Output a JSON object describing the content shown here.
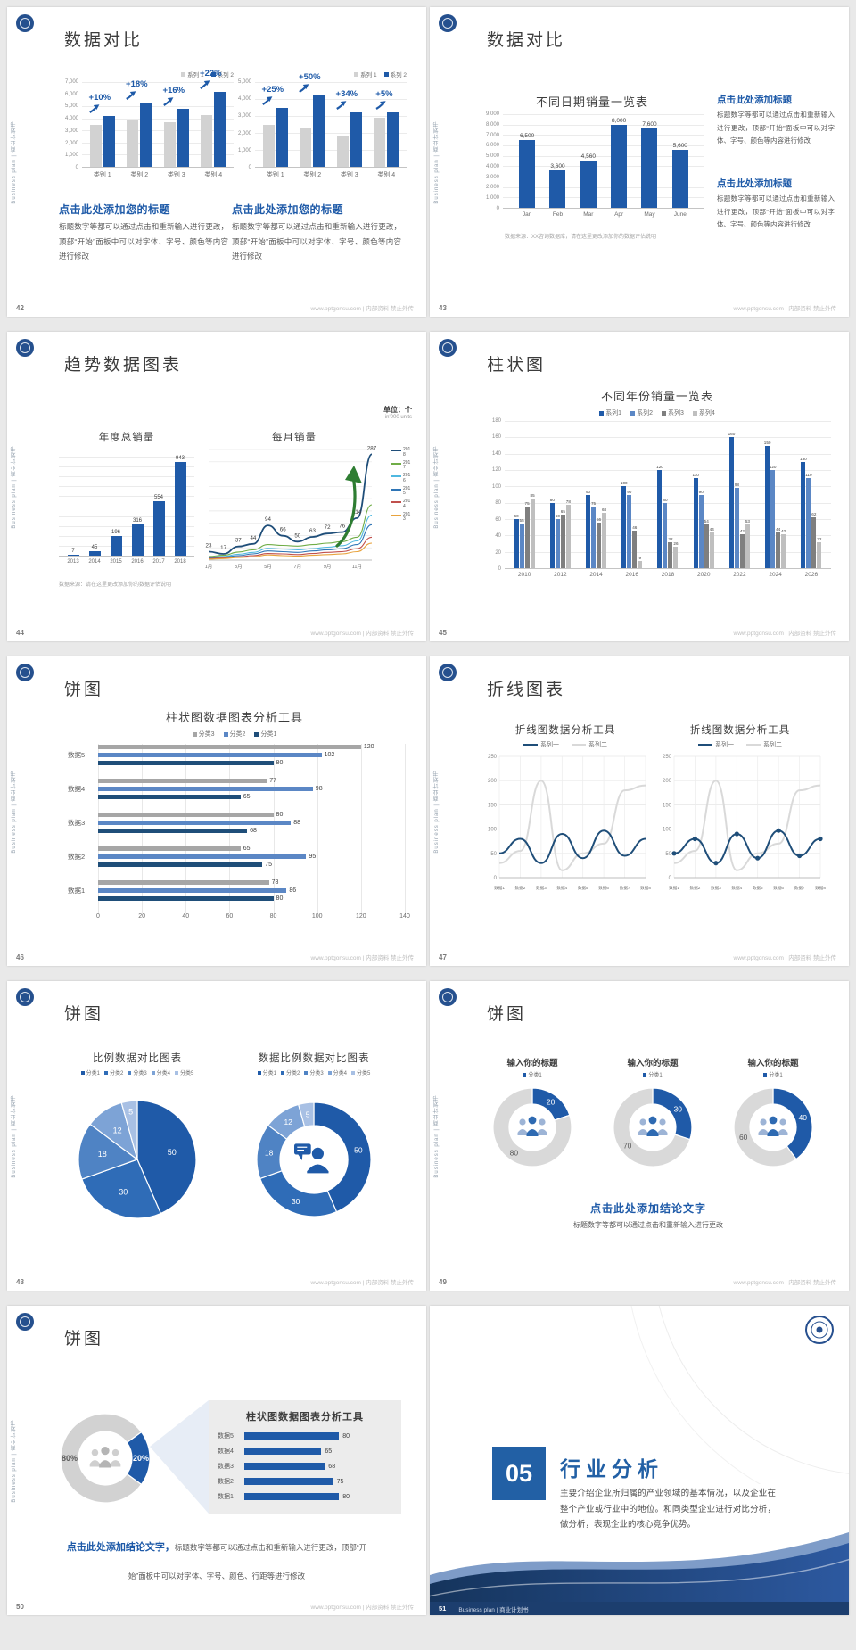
{
  "common": {
    "sidebar_text": "Business plan | 商业计划书",
    "footer_url": "www.pptgonsu.com | 内部资料 禁止外传",
    "colors": {
      "primary": "#1E5AA8",
      "navy": "#1F4E79",
      "mid_blue": "#5B87C5",
      "bar_gray": "#D2D2D2",
      "mid_gray": "#A6A6A6",
      "green_arrow": "#2E7D32",
      "body_text": "#595959"
    }
  },
  "s42": {
    "page_no": "42",
    "title": "数据对比",
    "legend": [
      "系列 1",
      "系列 2"
    ],
    "left_chart": {
      "type": "bar",
      "ymax": 7000,
      "yticks": [
        "7,000",
        "6,000",
        "5,000",
        "4,000",
        "3,000",
        "2,000",
        "1,000",
        "0"
      ],
      "categories": [
        "类别 1",
        "类别 2",
        "类别 3",
        "类别 4"
      ],
      "series": [
        {
          "name": "系列 1",
          "values": [
            3500,
            3800,
            3700,
            4300
          ]
        },
        {
          "name": "系列 2",
          "values": [
            4200,
            5300,
            4800,
            6200
          ]
        }
      ],
      "annotations": [
        "+10%",
        "+18%",
        "+16%",
        "+22%"
      ]
    },
    "right_chart": {
      "type": "bar",
      "ymax": 5000,
      "yticks": [
        "5,000",
        "4,000",
        "3,000",
        "2,000",
        "1,000",
        "0"
      ],
      "categories": [
        "类别 1",
        "类别 2",
        "类别 3",
        "类别 4"
      ],
      "series": [
        {
          "name": "系列 1",
          "values": [
            2500,
            2300,
            1800,
            2900
          ]
        },
        {
          "name": "系列 2",
          "values": [
            3500,
            4200,
            3200,
            3200
          ]
        }
      ],
      "annotations": [
        "+25%",
        "+50%",
        "+34%",
        "+5%"
      ]
    },
    "block_title": "点击此处添加您的标题",
    "block_body": "标题数字等都可以通过点击和重新输入进行更改，顶部“开始”面板中可以对字体、字号、颜色等内容进行修改"
  },
  "s43": {
    "page_no": "43",
    "title": "数据对比",
    "chart": {
      "type": "bar",
      "title": "不同日期销量一览表",
      "ymax": 9000,
      "yticks": [
        "9,000",
        "8,000",
        "7,000",
        "6,000",
        "5,000",
        "4,000",
        "3,000",
        "2,000",
        "1,000",
        "0"
      ],
      "categories": [
        "Jan",
        "Feb",
        "Mar",
        "Apr",
        "May",
        "June"
      ],
      "values": [
        6500,
        3600,
        4560,
        8000,
        7600,
        5600
      ],
      "labels": [
        "6,500",
        "3,600",
        "4,560",
        "8,000",
        "7,600",
        "5,600"
      ]
    },
    "note": "数据来源：XX咨询数据库，请在这里更改添加你的数据评估说明",
    "blocks": [
      {
        "title": "点击此处添加标题",
        "body": "标题数字等都可以通过点击和重新输入进行更改，顶部“开始”面板中可以对字体、字号、颜色等内容进行修改"
      },
      {
        "title": "点击此处添加标题",
        "body": "标题数字等都可以通过点击和重新输入进行更改，顶部“开始”面板中可以对字体、字号、颜色等内容进行修改"
      }
    ]
  },
  "s44": {
    "page_no": "44",
    "title": "趋势数据图表",
    "unit_cn": "单位：个",
    "unit_en": "in'000 units",
    "annual": {
      "type": "bar",
      "title": "年度总销量",
      "ymax": 1000,
      "categories": [
        "2013",
        "2014",
        "2015",
        "2016",
        "2017",
        "2018"
      ],
      "values": [
        7,
        45,
        196,
        316,
        554,
        943
      ]
    },
    "monthly": {
      "type": "line",
      "title": "每月销量",
      "ymax": 300,
      "x_labels": [
        "1月",
        "3月",
        "5月",
        "7月",
        "9月",
        "11月"
      ],
      "series": [
        {
          "name": "2018",
          "color": "#1F4E79",
          "values": [
            23,
            17,
            37,
            44,
            94,
            66,
            50,
            63,
            72,
            76,
            114,
            287
          ],
          "labeled": true
        },
        {
          "name": "2017",
          "color": "#70AD47",
          "values": [
            10,
            13,
            22,
            28,
            42,
            40,
            38,
            42,
            46,
            50,
            62,
            150
          ]
        },
        {
          "name": "2016",
          "color": "#4FB8E0",
          "values": [
            8,
            10,
            16,
            21,
            32,
            30,
            28,
            31,
            35,
            39,
            52,
            122
          ]
        },
        {
          "name": "2015",
          "color": "#2E75B6",
          "values": [
            6,
            8,
            12,
            17,
            25,
            23,
            21,
            25,
            28,
            31,
            42,
            96
          ]
        },
        {
          "name": "2014",
          "color": "#C0504D",
          "values": [
            4,
            6,
            9,
            12,
            18,
            17,
            15,
            18,
            21,
            23,
            31,
            62
          ]
        },
        {
          "name": "2013",
          "color": "#E8A33D",
          "values": [
            3,
            4,
            7,
            9,
            14,
            12,
            11,
            13,
            15,
            17,
            23,
            46
          ]
        }
      ]
    },
    "note": "数据来源：请在这里更改添加你的数据评估说明"
  },
  "s45": {
    "page_no": "45",
    "title": "柱状图",
    "chart": {
      "type": "bar",
      "title": "不同年份销量一览表",
      "ymax": 180,
      "yticks": [
        "180",
        "160",
        "140",
        "120",
        "100",
        "80",
        "60",
        "40",
        "20",
        "0"
      ],
      "categories": [
        "2010",
        "2012",
        "2014",
        "2016",
        "2018",
        "2020",
        "2022",
        "2024",
        "2026"
      ],
      "series": [
        {
          "name": "系列1",
          "color": "#1F5AA8",
          "values": [
            60,
            80,
            90,
            100,
            120,
            110,
            160,
            150,
            130
          ]
        },
        {
          "name": "系列2",
          "color": "#5B87C5",
          "values": [
            55,
            60,
            75,
            90,
            80,
            90,
            98,
            120,
            110
          ]
        },
        {
          "name": "系列3",
          "color": "#7F7F7F",
          "values": [
            75,
            65,
            56,
            46,
            32,
            54,
            42,
            44,
            62
          ]
        },
        {
          "name": "系列4",
          "color": "#BFBFBF",
          "values": [
            85,
            78,
            68,
            9,
            26,
            44,
            53,
            42,
            32
          ]
        }
      ]
    }
  },
  "s46": {
    "page_no": "46",
    "title": "饼图",
    "chart": {
      "type": "hbar",
      "title": "柱状图数据图表分析工具",
      "xmax": 140,
      "xticks": [
        "0",
        "20",
        "40",
        "60",
        "80",
        "100",
        "120",
        "140"
      ],
      "rows": [
        "数据5",
        "数据4",
        "数据3",
        "数据2",
        "数据1"
      ],
      "series": [
        {
          "name": "分类3",
          "color": "#A6A6A6",
          "values": [
            120,
            77,
            80,
            65,
            78
          ]
        },
        {
          "name": "分类2",
          "color": "#5B87C5",
          "values": [
            102,
            98,
            88,
            95,
            86
          ]
        },
        {
          "name": "分类1",
          "color": "#1F4E79",
          "values": [
            80,
            65,
            68,
            75,
            80
          ]
        }
      ]
    }
  },
  "s47": {
    "page_no": "47",
    "title": "折线图表",
    "charts": [
      {
        "title": "折线图数据分析工具",
        "ymax": 250,
        "yticks": [
          "250",
          "200",
          "150",
          "100",
          "50",
          "0"
        ],
        "x": [
          "数据1",
          "数据2",
          "数据3",
          "数据4",
          "数据5",
          "数据6",
          "数据7",
          "数据8"
        ],
        "series": [
          {
            "name": "系列一",
            "color": "#1F4E79",
            "values": [
              50,
              80,
              30,
              90,
              40,
              97,
              45,
              80
            ]
          },
          {
            "name": "系列二",
            "color": "#D9D9D9",
            "values": [
              30,
              55,
              200,
              15,
              50,
              70,
              180,
              190
            ]
          }
        ],
        "markers": false
      },
      {
        "title": "折线图数据分析工具",
        "ymax": 250,
        "yticks": [
          "250",
          "200",
          "150",
          "100",
          "50",
          "0"
        ],
        "x": [
          "数据1",
          "数据2",
          "数据3",
          "数据4",
          "数据5",
          "数据6",
          "数据7",
          "数据8"
        ],
        "series": [
          {
            "name": "系列一",
            "color": "#1F4E79",
            "values": [
              50,
              80,
              30,
              90,
              40,
              97,
              45,
              80
            ]
          },
          {
            "name": "系列二",
            "color": "#D9D9D9",
            "values": [
              30,
              55,
              200,
              15,
              50,
              70,
              180,
              190
            ]
          }
        ],
        "markers": true
      }
    ]
  },
  "s48": {
    "page_no": "48",
    "title": "饼图",
    "legend": [
      "分类1",
      "分类2",
      "分类3",
      "分类4",
      "分类5"
    ],
    "colors": [
      "#1F5AA8",
      "#2F6CB7",
      "#4F83C4",
      "#7DA3D6",
      "#A8C0E4"
    ],
    "pie": {
      "title": "比例数据对比图表",
      "values": [
        50,
        30,
        18,
        12,
        5
      ]
    },
    "donut": {
      "title": "数据比例数据对比图表",
      "values": [
        50,
        30,
        18,
        12,
        5
      ]
    }
  },
  "s49": {
    "page_no": "49",
    "title": "饼图",
    "charts": [
      {
        "title": "输入你的标题",
        "legend": "分类1",
        "value": 20,
        "rest": 80
      },
      {
        "title": "输入你的标题",
        "legend": "分类1",
        "value": 30,
        "rest": 70
      },
      {
        "title": "输入你的标题",
        "legend": "分类1",
        "value": 40,
        "rest": 60
      }
    ],
    "conclusion_title": "点击此处添加结论文字",
    "conclusion_body": "标题数字等都可以通过点击和重新输入进行更改"
  },
  "s50": {
    "page_no": "50",
    "title": "饼图",
    "donut": {
      "gray_value": 80,
      "blue_value": 20,
      "gray_label": "80%",
      "blue_label": "20%"
    },
    "panel": {
      "title": "柱状图数据图表分析工具",
      "rows": [
        "数据5",
        "数据4",
        "数据3",
        "数据2",
        "数据1"
      ],
      "values": [
        80,
        65,
        68,
        75,
        80
      ],
      "max": 100
    },
    "conclusion_title": "点击此处添加结论文字，",
    "conclusion_body": "标题数字等都可以通过点击和重新输入进行更改，顶部“开始”面板中可以对字体、字号、颜色、行距等进行修改"
  },
  "s51": {
    "page_no": "51",
    "number": "05",
    "heading": "行业分析",
    "body": "主要介绍企业所归属的产业领域的基本情况，以及企业在整个产业或行业中的地位。和同类型企业进行对比分析，做分析，表现企业的核心竞争优势。",
    "footer": "Business plan | 商业计划书"
  }
}
